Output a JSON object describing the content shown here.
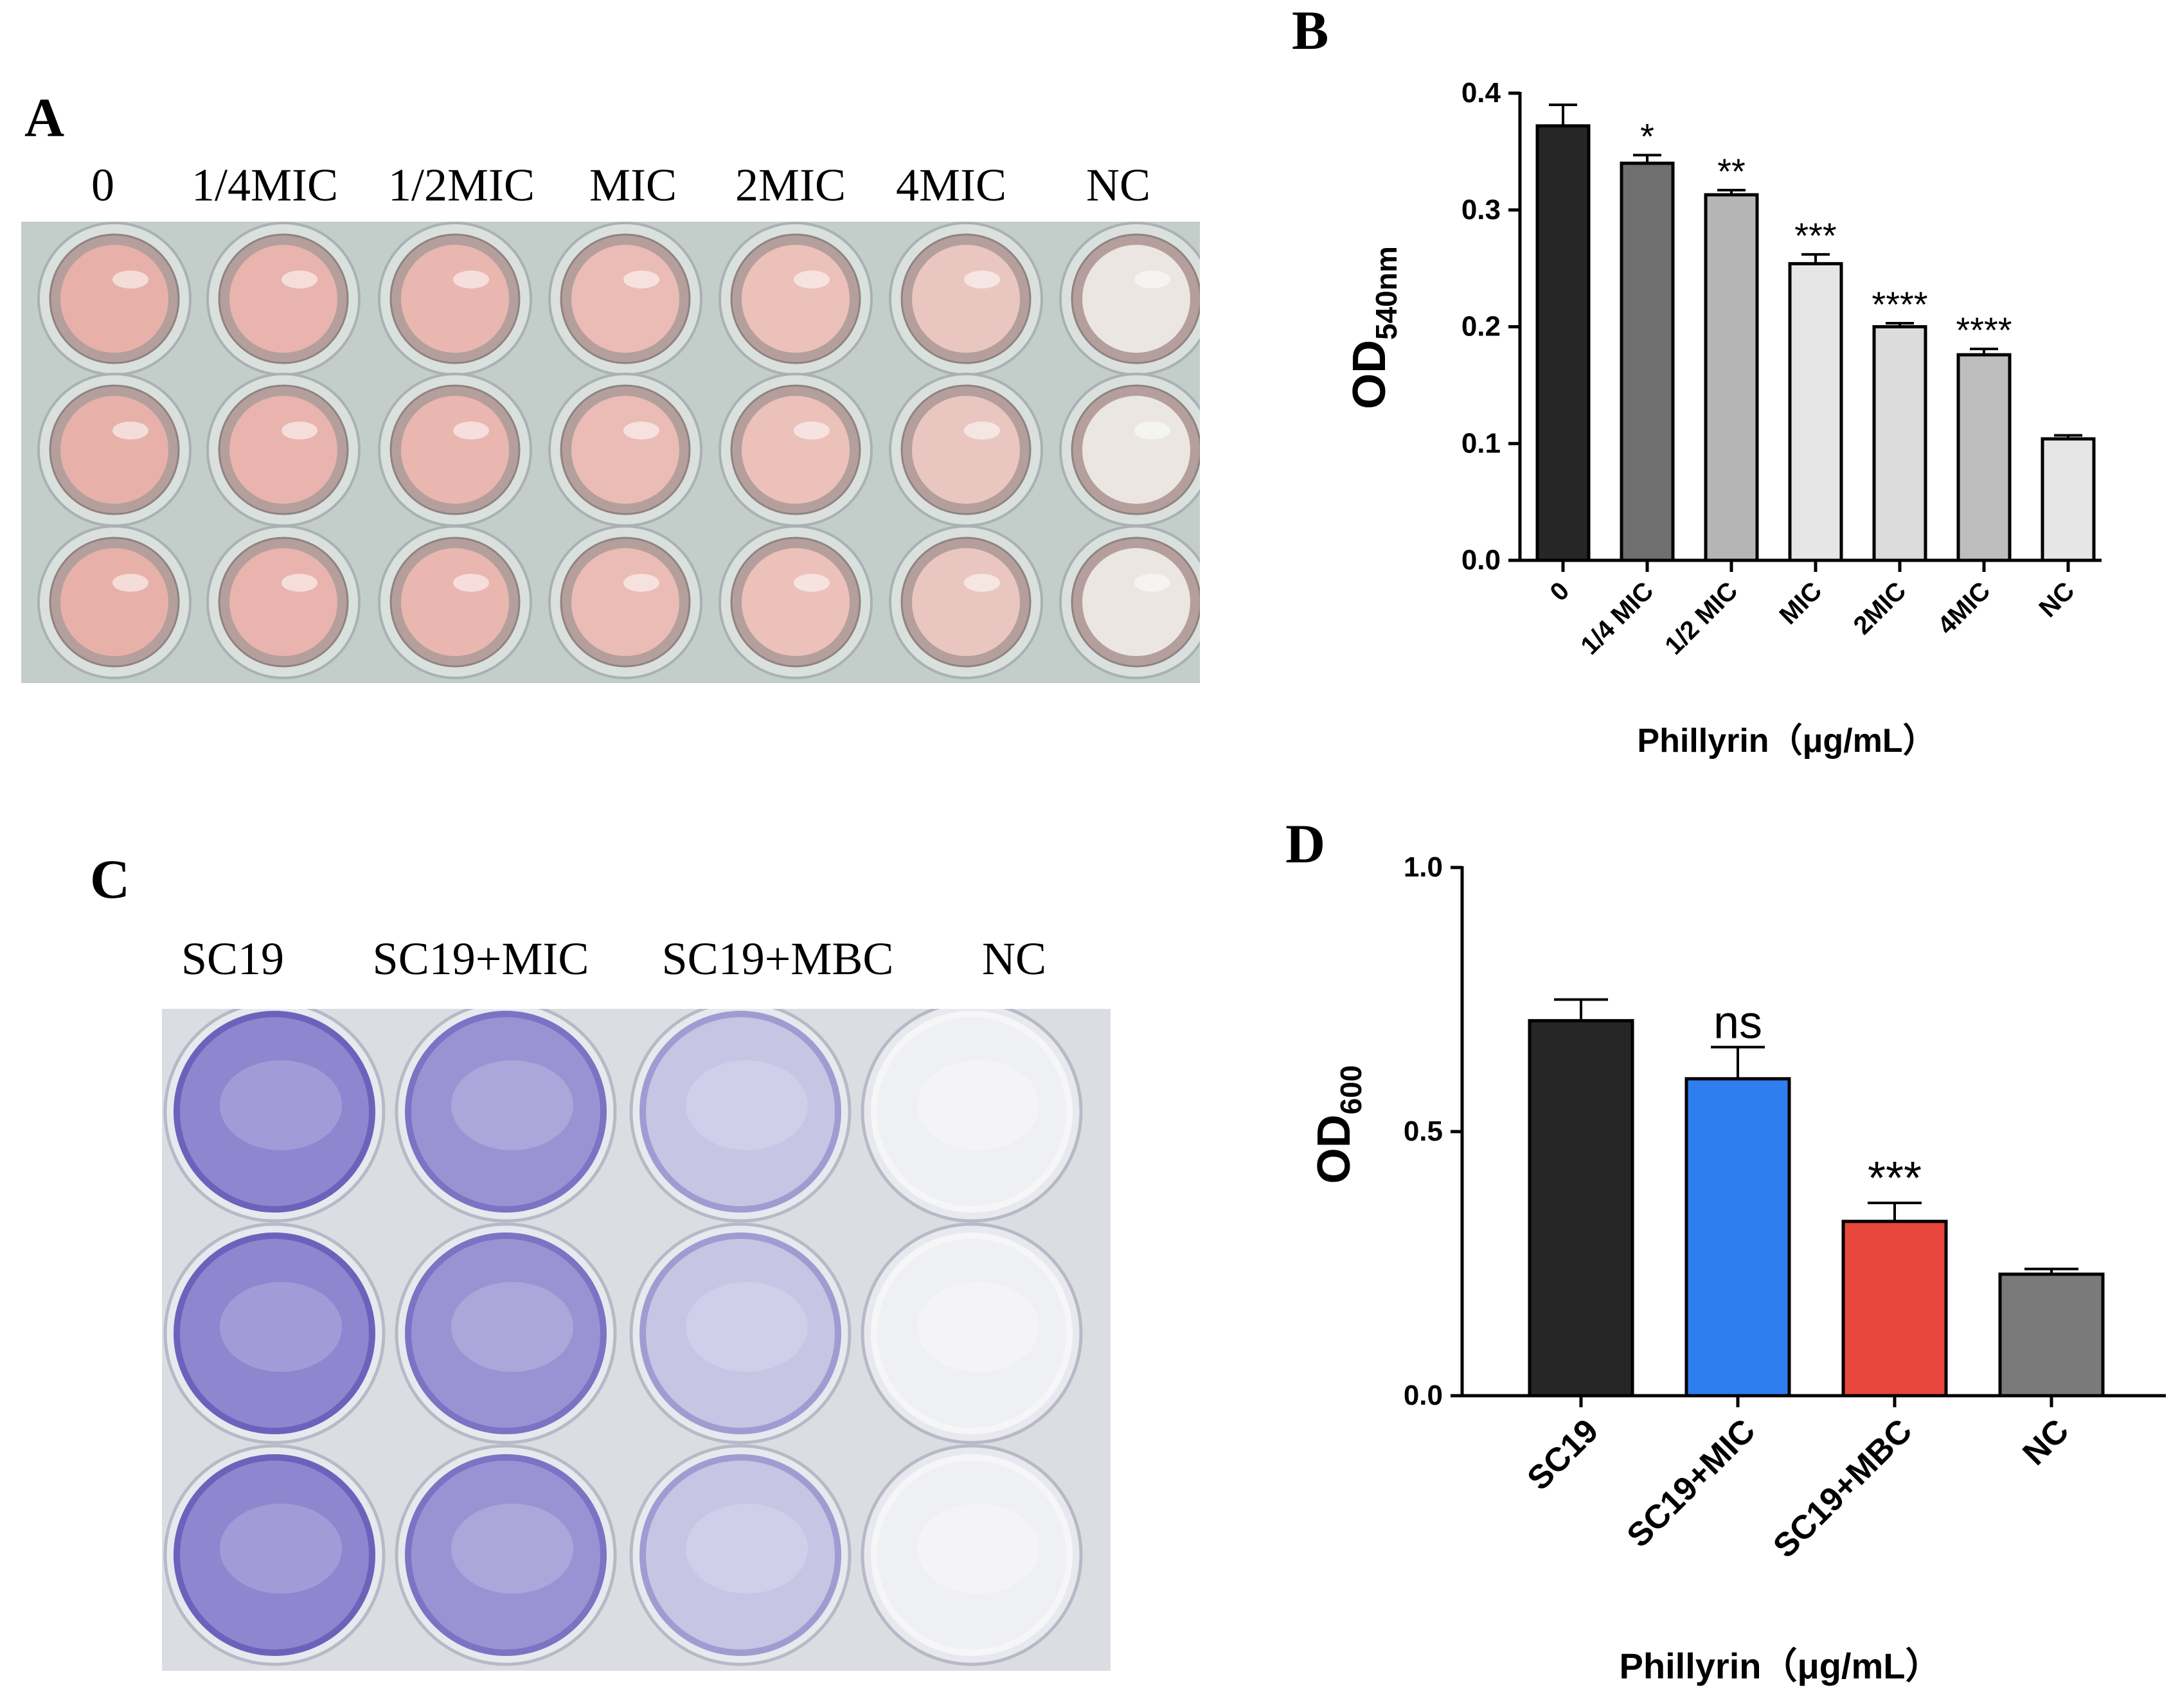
{
  "panels": {
    "a": {
      "letter": "A",
      "labels": [
        "0",
        "1/4MIC",
        "1/2MIC",
        "MIC",
        "2MIC",
        "4MIC",
        "NC"
      ],
      "well_colors": [
        "#e7b1aa",
        "#e8b4ad",
        "#e9b7b0",
        "#eabcb5",
        "#ecc1ba",
        "#e9c7c0",
        "#ebe6e1"
      ]
    },
    "b": {
      "letter": "B"
    },
    "c": {
      "letter": "C",
      "labels": [
        "SC19",
        "SC19+MIC",
        "SC19+MBC",
        "NC"
      ]
    },
    "d": {
      "letter": "D"
    }
  },
  "chart_data": [
    {
      "id": "B",
      "type": "bar",
      "ylabel_main": "OD",
      "ylabel_sub": "540nm",
      "xlabel": "Phillyrin（μg/mL）",
      "categories": [
        "0",
        "1/4 MIC",
        "1/2 MIC",
        "MIC",
        "2MIC",
        "4MIC",
        "NC"
      ],
      "values": [
        0.372,
        0.34,
        0.313,
        0.254,
        0.2,
        0.176,
        0.104
      ],
      "errors": [
        0.018,
        0.007,
        0.004,
        0.008,
        0.003,
        0.005,
        0.003
      ],
      "significance": [
        "",
        "*",
        "**",
        "***",
        "****",
        "****",
        ""
      ],
      "ylim": [
        0,
        0.4
      ],
      "yticks": [
        "0.0",
        "0.1",
        "0.2",
        "0.3",
        "0.4"
      ],
      "colors": [
        "#262626",
        "#6f6f6f",
        "#b5b5b5",
        "#e6e6e6",
        "#dcdcdc",
        "#bdbdbd",
        "#e6e6e6"
      ]
    },
    {
      "id": "D",
      "type": "bar",
      "ylabel_main": "OD",
      "ylabel_sub": "600",
      "xlabel": "Phillyrin（μg/mL）",
      "categories": [
        "SC19",
        "SC19+MIC",
        "SC19+MBC",
        "NC"
      ],
      "values": [
        0.71,
        0.6,
        0.33,
        0.23
      ],
      "errors": [
        0.04,
        0.06,
        0.035,
        0.01
      ],
      "significance": [
        "",
        "ns",
        "***",
        ""
      ],
      "ylim": [
        0,
        1.0
      ],
      "yticks": [
        "0.0",
        "0.5",
        "1.0"
      ],
      "colors": [
        "#262626",
        "#2f7ef0",
        "#e8453c",
        "#7a7a7a"
      ]
    }
  ]
}
